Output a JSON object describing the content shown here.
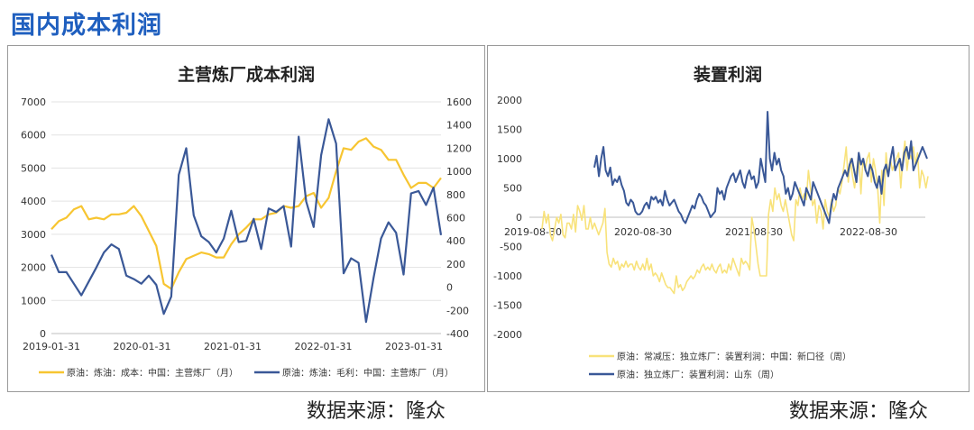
{
  "page_title": "国内成本利润",
  "colors": {
    "title": "#1f5fbf",
    "yellow": "#f7c531",
    "blue": "#3a5897",
    "light_yellow": "#f8e27a",
    "grid": "#d9d9d9",
    "axis": "#bfbfbf"
  },
  "sources": {
    "left": "数据来源：隆众",
    "right": "数据来源：隆众"
  },
  "chart_data": [
    {
      "type": "line",
      "title": "主营炼厂成本利润",
      "x_tick_labels": [
        "2019-01-31",
        "2020-01-31",
        "2021-01-31",
        "2022-01-31",
        "2023-01-31"
      ],
      "ylim_left": [
        0,
        7000
      ],
      "ylim_right": [
        -400,
        1600
      ],
      "y_ticks_left": [
        "0",
        "1000",
        "2000",
        "3000",
        "4000",
        "5000",
        "6000",
        "7000"
      ],
      "y_ticks_right": [
        "-400",
        "-200",
        "0",
        "200",
        "400",
        "600",
        "800",
        "1000",
        "1200",
        "1400",
        "1600"
      ],
      "series": [
        {
          "name": "原油：炼油：成本：中国：主营炼厂（月）",
          "axis": "left",
          "color": "#f7c531",
          "values": [
            3150,
            3400,
            3500,
            3750,
            3850,
            3450,
            3500,
            3450,
            3600,
            3600,
            3650,
            3850,
            3550,
            3100,
            2650,
            1500,
            1350,
            1850,
            2250,
            2350,
            2450,
            2400,
            2300,
            2300,
            2700,
            3000,
            3200,
            3450,
            3450,
            3600,
            3650,
            3850,
            3800,
            3850,
            4150,
            4250,
            3800,
            4100,
            4900,
            5600,
            5550,
            5800,
            5900,
            5650,
            5550,
            5250,
            5250,
            4800,
            4400,
            4550,
            4550,
            4400,
            4700
          ]
        },
        {
          "name": "原油：炼油：毛利：中国：主营炼厂（月）",
          "axis": "right",
          "color": "#3a5897",
          "values": [
            280,
            130,
            130,
            30,
            -70,
            50,
            170,
            300,
            370,
            330,
            100,
            70,
            30,
            100,
            20,
            -230,
            -80,
            970,
            1200,
            620,
            440,
            390,
            300,
            420,
            660,
            390,
            400,
            590,
            330,
            680,
            650,
            700,
            350,
            1300,
            740,
            520,
            1140,
            1450,
            1240,
            120,
            250,
            210,
            -300,
            80,
            420,
            560,
            470,
            110,
            810,
            830,
            710,
            860,
            450
          ]
        }
      ]
    },
    {
      "type": "line",
      "title": "装置利润",
      "x_tick_labels": [
        "2019-08-30",
        "2020-08-30",
        "2021-08-30",
        "2022-08-30"
      ],
      "ylim": [
        -2000,
        2000
      ],
      "y_ticks": [
        "-2000",
        "-1500",
        "-1000",
        "-500",
        "0",
        "500",
        "1000",
        "1500",
        "2000"
      ],
      "series": [
        {
          "name": "原油：常减压：独立炼厂：装置利润：中国：新口径（周）",
          "color": "#f8e27a",
          "values": [
            -200,
            100,
            -100,
            50,
            -300,
            -400,
            -200,
            0,
            -100,
            50,
            -300,
            -350,
            -100,
            -100,
            -200,
            50,
            -250,
            200,
            100,
            -50,
            200,
            -200,
            -200,
            0,
            -200,
            -100,
            -200,
            -300,
            -200,
            -100,
            150,
            -600,
            -800,
            -850,
            -700,
            -800,
            -750,
            -900,
            -800,
            -850,
            -750,
            -850,
            -800,
            -800,
            -900,
            -750,
            -850,
            -900,
            -800,
            -900,
            -700,
            -900,
            -800,
            -1000,
            -950,
            -1000,
            -1100,
            -950,
            -1050,
            -1150,
            -1200,
            -1200,
            -1250,
            -1300,
            -1000,
            -1200,
            -1150,
            -1250,
            -1200,
            -1100,
            -1050,
            -1000,
            -1050,
            -1000,
            -900,
            -950,
            -850,
            -800,
            -900,
            -850,
            -900,
            -800,
            -900,
            -950,
            -850,
            -800,
            -950,
            -900,
            -950,
            -800,
            -900,
            -700,
            -800,
            -900,
            -1000,
            -700,
            -800,
            -750,
            -800,
            -900,
            0,
            -200,
            -500,
            -800,
            -1000,
            -1000,
            -1000,
            -1000,
            50,
            300,
            100,
            500,
            300,
            400,
            200,
            100,
            300,
            100,
            -100,
            -300,
            -400,
            300,
            200,
            500,
            300,
            400,
            300,
            800,
            500,
            200,
            300,
            -100,
            200,
            100,
            -200,
            300,
            100,
            0,
            300,
            100,
            200,
            500,
            400,
            600,
            900,
            1200,
            600,
            1000,
            700,
            500,
            800,
            1100,
            400,
            1000,
            800,
            1000,
            1100,
            600,
            1000,
            800,
            500,
            -100,
            800,
            200,
            1100,
            700,
            1000,
            800,
            900,
            1000,
            1100,
            500,
            1000,
            1300,
            800,
            1100,
            1000,
            1200,
            900,
            1100,
            500,
            800,
            700,
            500,
            700
          ]
        },
        {
          "name": "原油：独立炼厂：装置利润：山东（周）",
          "color": "#3a5897",
          "values": [
            850,
            1050,
            700,
            1000,
            1200,
            800,
            700,
            850,
            550,
            650,
            600,
            700,
            550,
            450,
            250,
            200,
            300,
            250,
            100,
            50,
            50,
            100,
            200,
            250,
            150,
            350,
            300,
            350,
            250,
            300,
            200,
            450,
            300,
            200,
            250,
            300,
            200,
            100,
            50,
            -50,
            -100,
            0,
            100,
            200,
            150,
            300,
            400,
            350,
            250,
            200,
            100,
            0,
            50,
            100,
            500,
            400,
            450,
            300,
            500,
            600,
            700,
            750,
            600,
            700,
            800,
            600,
            500,
            700,
            800,
            650,
            700,
            500,
            600,
            1000,
            800,
            600,
            1800,
            1000,
            800,
            1100,
            900,
            1000,
            800,
            700,
            400,
            500,
            300,
            400,
            600,
            500,
            400,
            300,
            200,
            500,
            400,
            300,
            600,
            500,
            400,
            300,
            200,
            100,
            0,
            -100,
            200,
            400,
            300,
            500,
            600,
            700,
            800,
            700,
            900,
            1000,
            800,
            600,
            1100,
            900,
            1000,
            800,
            700,
            900,
            800,
            600,
            500,
            700,
            400,
            800,
            900,
            700,
            1000,
            1200,
            800,
            900,
            1000,
            800,
            1100,
            1200,
            1000,
            1300,
            800,
            900,
            1000,
            1100,
            1200,
            1100,
            1000
          ]
        }
      ]
    }
  ]
}
